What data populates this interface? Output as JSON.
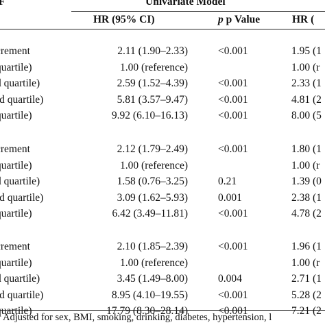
{
  "header": {
    "row_header_fragment": "F",
    "model_title": "Univariate Model",
    "col_hr": "HR (95% CI)",
    "col_p": "p Value",
    "col_hr2": "HR ("
  },
  "groups": [
    {
      "rows": [
        {
          "label": "crement",
          "hr": "2.11 (1.90–2.33)",
          "p": "<0.001",
          "hr2": "1.95 (1"
        },
        {
          "label": "quartile)",
          "hr": "1.00 (reference)",
          "p": "",
          "hr2": "1.00 (r"
        },
        {
          "label": "d quartile)",
          "hr": "2.59 (1.52–4.39)",
          "p": "<0.001",
          "hr2": "2.33 (1"
        },
        {
          "label": "rd quartile)",
          "hr": "5.81 (3.57–9.47)",
          "p": "<0.001",
          "hr2": "4.81 (2"
        },
        {
          "label": "quartile)",
          "hr": "9.92 (6.10–16.13)",
          "p": "<0.001",
          "hr2": "8.00 (5"
        }
      ]
    },
    {
      "rows": [
        {
          "label": "crement",
          "hr": "2.12 (1.79–2.49)",
          "p": "<0.001",
          "hr2": "1.80 (1"
        },
        {
          "label": "quartile)",
          "hr": "1.00 (reference)",
          "p": "",
          "hr2": "1.00 (r"
        },
        {
          "label": "d quartile)",
          "hr": "1.58 (0.76–3.25)",
          "p": "0.21",
          "hr2": "1.39 (0"
        },
        {
          "label": "rd quartile)",
          "hr": "3.09 (1.62–5.93)",
          "p": "0.001",
          "hr2": "2.38 (1"
        },
        {
          "label": "quartile)",
          "hr": "6.42 (3.49–11.81)",
          "p": "<0.001",
          "hr2": "4.78 (2"
        }
      ]
    },
    {
      "rows": [
        {
          "label": "crement",
          "hr": "2.10 (1.85–2.39)",
          "p": "<0.001",
          "hr2": "1.96 (1"
        },
        {
          "label": "quartile)",
          "hr": "1.00 (reference)",
          "p": "",
          "hr2": "1.00 (r"
        },
        {
          "label": "d quartile)",
          "hr": "3.45 (1.49–8.00)",
          "p": "0.004",
          "hr2": "2.71 (1"
        },
        {
          "label": "rd quartile)",
          "hr": "8.95 (4.10–19.55)",
          "p": "<0.001",
          "hr2": "5.28 (2"
        },
        {
          "label": "quartile)",
          "hr": "17.79 (8.30–28.14)",
          "p": "<0.001",
          "hr2": "7.21 (2"
        }
      ]
    }
  ],
  "footnote": "Adjusted for sex, BMI, smoking, drinking, diabetes, hypertension, l"
}
